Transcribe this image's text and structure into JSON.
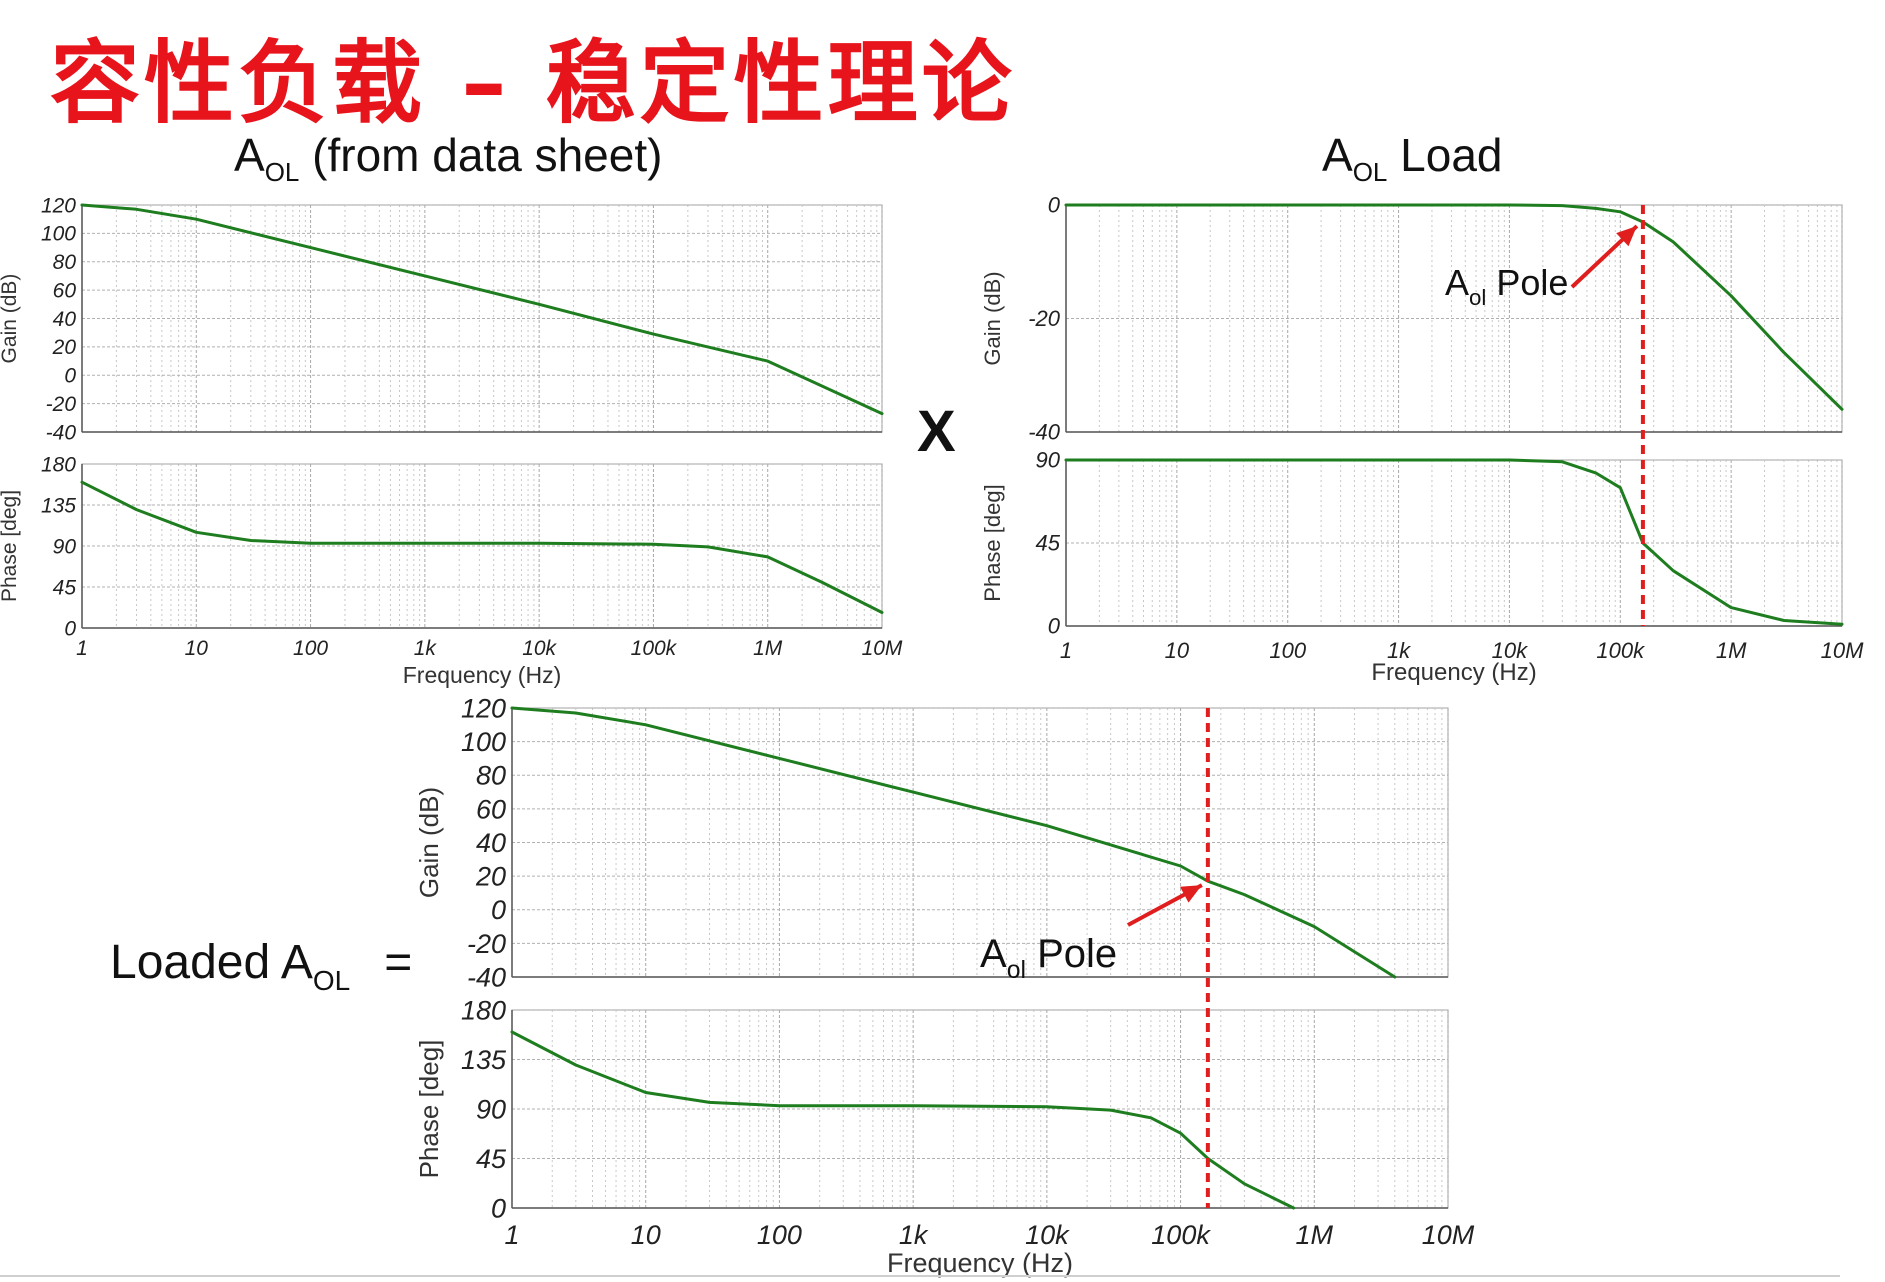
{
  "slide": {
    "title": "容性负载 – 稳定性理论",
    "times_sign": "X",
    "equals_sign": "="
  },
  "colors": {
    "title": "#e8141c",
    "curve": "#1e7d1e",
    "pole_marker": "#e01e1e",
    "grid": "#c8c8c8",
    "axis": "#555555"
  },
  "chart_data": [
    {
      "id": "aol-datasheet",
      "type": "line",
      "title_main": "A",
      "title_sub": "OL",
      "title_rest": " (from data sheet)",
      "xlabel": "Frequency (Hz)",
      "xscale": "log",
      "xlim": [
        1,
        10000000
      ],
      "x_tick_values": [
        1,
        10,
        100,
        1000,
        10000,
        100000,
        1000000,
        10000000
      ],
      "x_tick_labels": [
        "1",
        "10",
        "100",
        "1k",
        "10k",
        "100k",
        "1M",
        "10M"
      ],
      "grid": true,
      "panels": [
        {
          "name": "gain",
          "ylabel": "Gain (dB)",
          "ylim": [
            -40,
            120
          ],
          "y_ticks": [
            120,
            100,
            80,
            60,
            40,
            20,
            0,
            -20,
            -40
          ],
          "x": [
            1,
            3,
            10,
            100,
            1000,
            10000,
            100000,
            1000000,
            10000000
          ],
          "y": [
            120,
            117,
            110,
            90,
            70,
            50,
            29,
            10,
            -27
          ]
        },
        {
          "name": "phase",
          "ylabel": "Phase [deg]",
          "ylim": [
            0,
            180
          ],
          "y_ticks": [
            180,
            135,
            90,
            45,
            0
          ],
          "x": [
            1,
            3,
            10,
            30,
            100,
            1000,
            10000,
            100000,
            300000,
            1000000,
            3000000,
            10000000
          ],
          "y": [
            160,
            130,
            105,
            96,
            93,
            93,
            93,
            92,
            89,
            78,
            50,
            17
          ]
        }
      ],
      "pole_marker": null
    },
    {
      "id": "aol-load",
      "type": "line",
      "title_main": "A",
      "title_sub": "OL",
      "title_rest": " Load",
      "xlabel": "Frequency (Hz)",
      "xscale": "log",
      "xlim": [
        1,
        10000000
      ],
      "x_tick_values": [
        1,
        10,
        100,
        1000,
        10000,
        100000,
        1000000,
        10000000
      ],
      "x_tick_labels": [
        "1",
        "10",
        "100",
        "1k",
        "10k",
        "100k",
        "1M",
        "10M"
      ],
      "grid": true,
      "panels": [
        {
          "name": "gain",
          "ylabel": "Gain (dB)",
          "ylim": [
            -40,
            0
          ],
          "y_ticks": [
            0,
            -20,
            -40
          ],
          "x": [
            1,
            10000,
            30000,
            60000,
            100000,
            160000,
            300000,
            1000000,
            3000000,
            10000000
          ],
          "y": [
            0,
            0,
            -0.1,
            -0.6,
            -1.2,
            -3,
            -6.5,
            -16,
            -26,
            -36
          ]
        },
        {
          "name": "phase",
          "ylabel": "Phase [deg]",
          "ylim": [
            0,
            90
          ],
          "y_ticks": [
            90,
            45,
            0
          ],
          "x": [
            1,
            10000,
            30000,
            60000,
            100000,
            160000,
            300000,
            1000000,
            3000000,
            10000000
          ],
          "y": [
            90,
            90,
            89,
            83,
            75,
            45,
            30,
            10,
            3,
            1
          ]
        }
      ],
      "pole_marker": {
        "x": 160000,
        "label_main": "A",
        "label_sub": "ol",
        "label_rest": " Pole"
      }
    },
    {
      "id": "loaded-aol",
      "type": "line",
      "title_main": "Loaded A",
      "title_sub": "OL",
      "title_rest": "",
      "xlabel": "Frequency (Hz)",
      "xscale": "log",
      "xlim": [
        1,
        10000000
      ],
      "x_tick_values": [
        1,
        10,
        100,
        1000,
        10000,
        100000,
        1000000,
        10000000
      ],
      "x_tick_labels": [
        "1",
        "10",
        "100",
        "1k",
        "10k",
        "100k",
        "1M",
        "10M"
      ],
      "grid": true,
      "panels": [
        {
          "name": "gain",
          "ylabel": "Gain (dB)",
          "ylim": [
            -40,
            120
          ],
          "y_ticks": [
            120,
            100,
            80,
            60,
            40,
            20,
            0,
            -20,
            -40
          ],
          "x": [
            1,
            3,
            10,
            100,
            1000,
            10000,
            100000,
            160000,
            300000,
            1000000,
            4000000
          ],
          "y": [
            120,
            117,
            110,
            90,
            70,
            50,
            26,
            17,
            9,
            -10,
            -40
          ]
        },
        {
          "name": "phase",
          "ylabel": "Phase [deg]",
          "ylim": [
            0,
            180
          ],
          "y_ticks": [
            180,
            135,
            90,
            45,
            0
          ],
          "x": [
            1,
            3,
            10,
            30,
            100,
            1000,
            10000,
            30000,
            60000,
            100000,
            160000,
            300000,
            700000
          ],
          "y": [
            160,
            130,
            105,
            96,
            93,
            93,
            92,
            89,
            82,
            68,
            45,
            22,
            0
          ]
        }
      ],
      "pole_marker": {
        "x": 160000,
        "label_main": "A",
        "label_sub": "ol",
        "label_rest": " Pole"
      }
    }
  ]
}
